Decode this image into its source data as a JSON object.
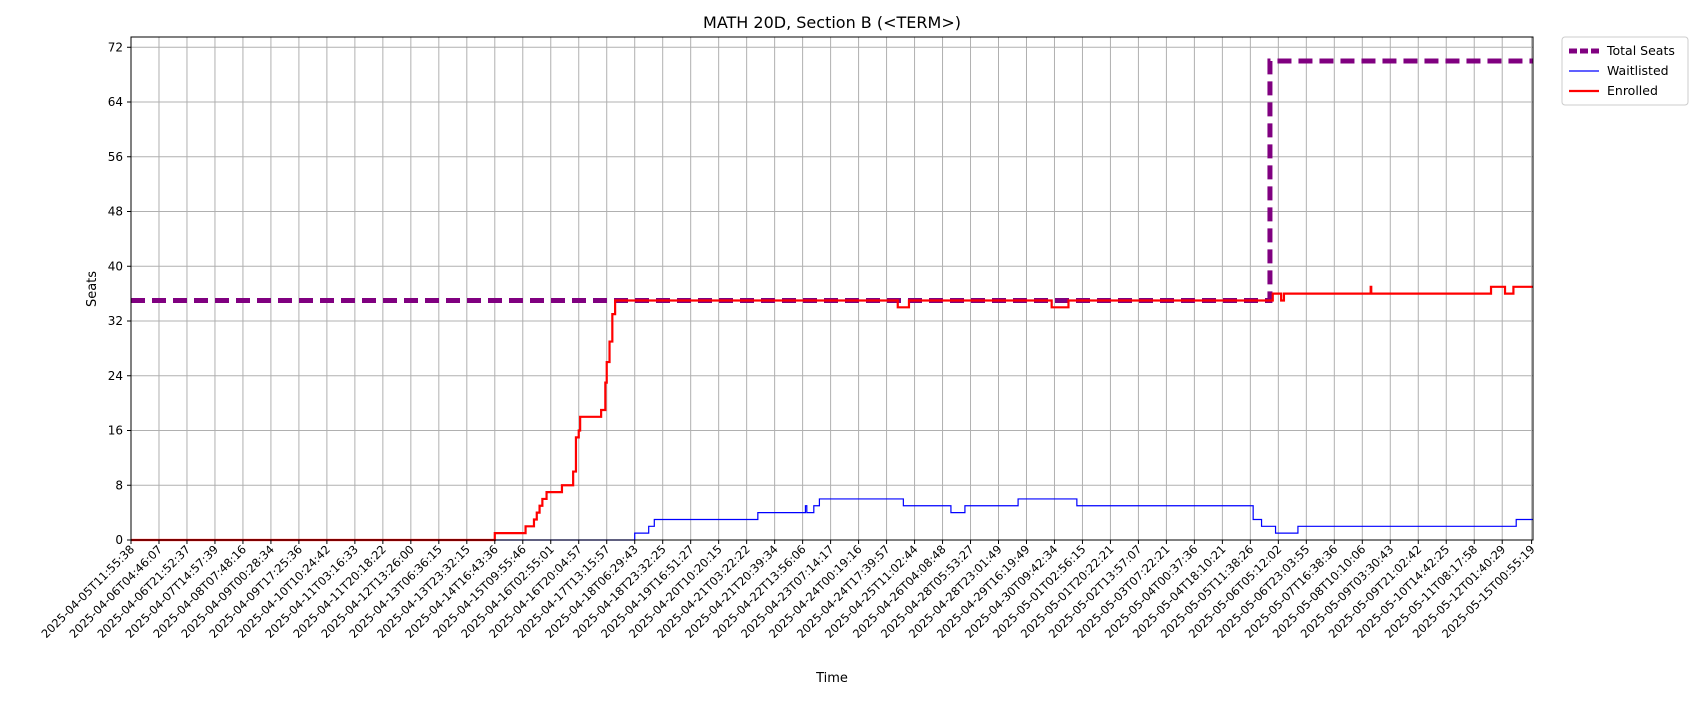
{
  "chart_data": {
    "type": "line",
    "title": "MATH 20D, Section B (<TERM>)",
    "xlabel": "Time",
    "ylabel": "Seats",
    "ylim": [
      0,
      73.5
    ],
    "yticks": [
      0,
      8,
      16,
      24,
      32,
      40,
      48,
      56,
      64,
      72
    ],
    "grid": true,
    "legend_position": "outside-top-right",
    "x_tick_labels": [
      "2025-04-05T11:55:38",
      "2025-04-06T04:46:07",
      "2025-04-06T21:52:37",
      "2025-04-07T14:57:39",
      "2025-04-08T07:48:16",
      "2025-04-09T00:28:34",
      "2025-04-09T17:25:36",
      "2025-04-10T10:24:42",
      "2025-04-11T03:16:33",
      "2025-04-11T20:18:22",
      "2025-04-12T13:26:00",
      "2025-04-13T06:36:15",
      "2025-04-13T23:32:15",
      "2025-04-14T16:43:36",
      "2025-04-15T09:55:46",
      "2025-04-16T02:55:01",
      "2025-04-16T20:04:57",
      "2025-04-17T13:15:57",
      "2025-04-18T06:29:43",
      "2025-04-18T23:32:25",
      "2025-04-19T16:51:27",
      "2025-04-20T10:20:15",
      "2025-04-21T03:22:22",
      "2025-04-21T20:39:34",
      "2025-04-22T13:56:06",
      "2025-04-23T07:14:17",
      "2025-04-24T00:19:16",
      "2025-04-24T17:39:57",
      "2025-04-25T11:02:44",
      "2025-04-26T04:08:48",
      "2025-04-28T05:53:27",
      "2025-04-28T23:01:49",
      "2025-04-29T16:19:49",
      "2025-04-30T09:42:34",
      "2025-05-01T02:56:15",
      "2025-05-01T20:22:21",
      "2025-05-02T13:57:07",
      "2025-05-03T07:22:21",
      "2025-05-04T00:37:36",
      "2025-05-04T18:10:21",
      "2025-05-05T11:38:26",
      "2025-05-06T05:12:02",
      "2025-05-06T23:03:55",
      "2025-05-07T16:38:36",
      "2025-05-08T10:10:06",
      "2025-05-09T03:30:43",
      "2025-05-09T21:02:42",
      "2025-05-10T14:42:25",
      "2025-05-11T08:17:58",
      "2025-05-12T01:40:29",
      "2025-05-15T00:55:19"
    ],
    "series": [
      {
        "name": "Total Seats",
        "color": "#800080",
        "style": "dashed",
        "points": [
          [
            0,
            35
          ],
          [
            40.7,
            35
          ],
          [
            40.7,
            70
          ],
          [
            50.1,
            70
          ]
        ]
      },
      {
        "name": "Waitlisted",
        "color": "#0000ff",
        "style": "solid",
        "points": [
          [
            0,
            0
          ],
          [
            18.0,
            0
          ],
          [
            18.0,
            1
          ],
          [
            18.5,
            1
          ],
          [
            18.5,
            2
          ],
          [
            18.7,
            2
          ],
          [
            18.7,
            3
          ],
          [
            22.4,
            3
          ],
          [
            22.4,
            4
          ],
          [
            24.1,
            4
          ],
          [
            24.1,
            5
          ],
          [
            24.15,
            5
          ],
          [
            24.15,
            4
          ],
          [
            24.4,
            4
          ],
          [
            24.4,
            5
          ],
          [
            24.6,
            5
          ],
          [
            24.6,
            6
          ],
          [
            27.6,
            6
          ],
          [
            27.6,
            5
          ],
          [
            29.3,
            5
          ],
          [
            29.3,
            4
          ],
          [
            29.8,
            4
          ],
          [
            29.8,
            5
          ],
          [
            31.7,
            5
          ],
          [
            31.7,
            6
          ],
          [
            33.8,
            6
          ],
          [
            33.8,
            5
          ],
          [
            40.1,
            5
          ],
          [
            40.1,
            3
          ],
          [
            40.4,
            3
          ],
          [
            40.4,
            2
          ],
          [
            40.9,
            2
          ],
          [
            40.9,
            1
          ],
          [
            41.7,
            1
          ],
          [
            41.7,
            2
          ],
          [
            49.5,
            2
          ],
          [
            49.5,
            3
          ],
          [
            50.1,
            3
          ]
        ]
      },
      {
        "name": "Enrolled",
        "color": "#ff0000",
        "style": "solid",
        "points": [
          [
            0,
            0
          ],
          [
            13.0,
            0
          ],
          [
            13.0,
            1
          ],
          [
            14.1,
            1
          ],
          [
            14.1,
            2
          ],
          [
            14.4,
            2
          ],
          [
            14.4,
            3
          ],
          [
            14.5,
            3
          ],
          [
            14.5,
            4
          ],
          [
            14.6,
            4
          ],
          [
            14.6,
            5
          ],
          [
            14.7,
            5
          ],
          [
            14.7,
            6
          ],
          [
            14.85,
            6
          ],
          [
            14.85,
            7
          ],
          [
            15.4,
            7
          ],
          [
            15.4,
            8
          ],
          [
            15.8,
            8
          ],
          [
            15.8,
            10
          ],
          [
            15.9,
            10
          ],
          [
            15.9,
            15
          ],
          [
            16.0,
            15
          ],
          [
            16.0,
            16
          ],
          [
            16.05,
            16
          ],
          [
            16.05,
            18
          ],
          [
            16.8,
            18
          ],
          [
            16.8,
            19
          ],
          [
            16.95,
            19
          ],
          [
            16.95,
            23
          ],
          [
            17.0,
            23
          ],
          [
            17.0,
            26
          ],
          [
            17.1,
            26
          ],
          [
            17.1,
            29
          ],
          [
            17.2,
            29
          ],
          [
            17.2,
            33
          ],
          [
            17.3,
            33
          ],
          [
            17.3,
            35
          ],
          [
            27.4,
            35
          ],
          [
            27.4,
            34
          ],
          [
            27.8,
            34
          ],
          [
            27.8,
            35
          ],
          [
            32.9,
            35
          ],
          [
            32.9,
            34
          ],
          [
            33.5,
            34
          ],
          [
            33.5,
            35
          ],
          [
            40.8,
            35
          ],
          [
            40.8,
            36
          ],
          [
            41.1,
            36
          ],
          [
            41.1,
            35
          ],
          [
            41.2,
            35
          ],
          [
            41.2,
            36
          ],
          [
            44.3,
            36
          ],
          [
            44.3,
            37
          ],
          [
            44.32,
            37
          ],
          [
            44.32,
            36
          ],
          [
            48.6,
            36
          ],
          [
            48.6,
            37
          ],
          [
            49.1,
            37
          ],
          [
            49.1,
            36
          ],
          [
            49.4,
            36
          ],
          [
            49.4,
            37
          ],
          [
            50.1,
            37
          ]
        ]
      }
    ],
    "x_domain": [
      0,
      50.1
    ]
  }
}
